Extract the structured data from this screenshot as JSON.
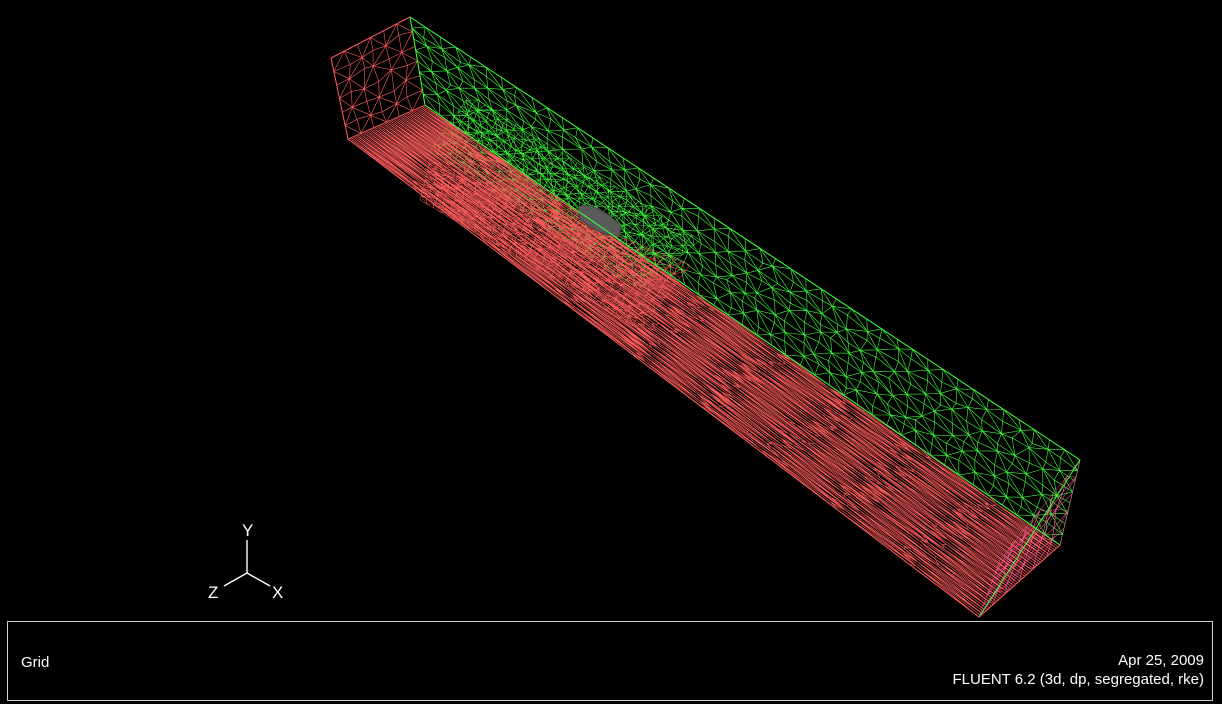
{
  "graphics": {
    "axes": {
      "x_label": "X",
      "y_label": "Y",
      "z_label": "Z"
    }
  },
  "footer": {
    "title": "Grid",
    "date": "Apr 25, 2009",
    "solver": "FLUENT 6.2 (3d, dp, segregated, rke)"
  },
  "colors": {
    "background": "#000000",
    "red_faces": "#ff5c5c",
    "green_faces": "#3cff3c",
    "body": "#5a5a5a",
    "text": "#ffffff",
    "panel_border": "#cfcfcf"
  }
}
